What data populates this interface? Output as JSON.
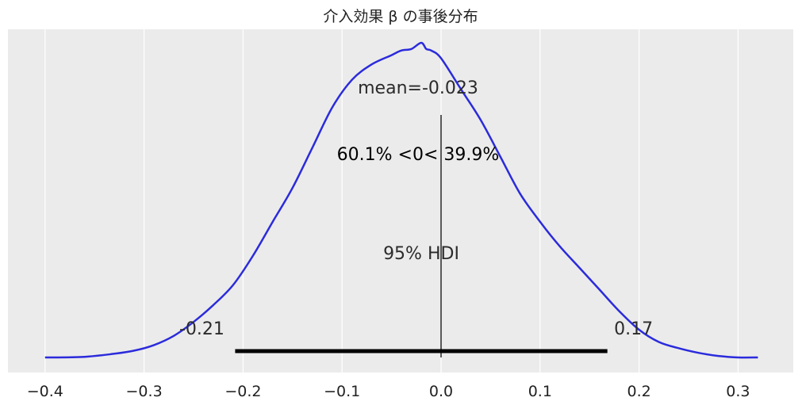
{
  "chart_data": {
    "type": "area",
    "title": "介入効果 β の事後分布",
    "xlabel": "",
    "ylabel": "",
    "xlim": [
      -0.4,
      0.32
    ],
    "x_ticks": [
      -0.4,
      -0.3,
      -0.2,
      -0.1,
      0.0,
      0.1,
      0.2,
      0.3
    ],
    "x_tick_labels": [
      "−0.4",
      "−0.3",
      "−0.2",
      "−0.1",
      "0.0",
      "0.1",
      "0.2",
      "0.3"
    ],
    "grid": true,
    "background": "#ebebeb",
    "series": [
      {
        "color": "#2b2bdc",
        "x": [
          -0.4,
          -0.36,
          -0.33,
          -0.31,
          -0.29,
          -0.27,
          -0.25,
          -0.23,
          -0.21,
          -0.19,
          -0.17,
          -0.15,
          -0.13,
          -0.11,
          -0.09,
          -0.07,
          -0.05,
          -0.04,
          -0.03,
          -0.02,
          -0.015,
          -0.01,
          0.0,
          0.02,
          0.04,
          0.06,
          0.08,
          0.1,
          0.12,
          0.14,
          0.16,
          0.18,
          0.2,
          0.22,
          0.24,
          0.26,
          0.28,
          0.3,
          0.32
        ],
        "y": [
          0.0,
          0.002,
          0.012,
          0.022,
          0.04,
          0.07,
          0.115,
          0.17,
          0.235,
          0.33,
          0.44,
          0.55,
          0.68,
          0.81,
          0.9,
          0.95,
          0.98,
          0.995,
          1.0,
          1.02,
          1.0,
          0.995,
          0.97,
          0.87,
          0.77,
          0.65,
          0.53,
          0.44,
          0.36,
          0.29,
          0.22,
          0.15,
          0.09,
          0.05,
          0.03,
          0.015,
          0.005,
          0.0,
          0.0
        ]
      }
    ],
    "point_estimate": {
      "label": "mean=-0.023",
      "value": -0.023
    },
    "reference": {
      "value": 0.0,
      "label": "60.1% <0< 39.9%"
    },
    "hdi": {
      "label": "95% HDI",
      "low": -0.208,
      "high": 0.168,
      "low_label": "-0.21",
      "high_label": "0.17"
    }
  }
}
